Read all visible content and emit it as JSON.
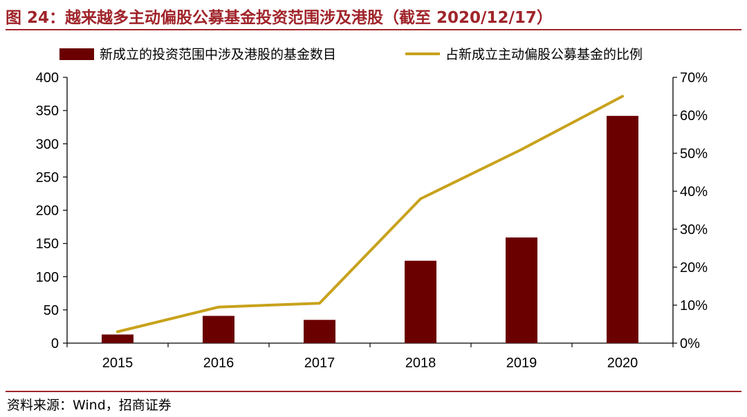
{
  "header": {
    "title": "图 24：越来越多主动偏股公募基金投资范围涉及港股（截至 2020/12/17）"
  },
  "footer": {
    "source": "资料来源：Wind，招商证券"
  },
  "colors": {
    "accent": "#a0242a",
    "bar": "#6b0000",
    "line": "#c8a21c"
  },
  "chart_data": {
    "type": "bar",
    "title": "",
    "categories": [
      "2015",
      "2016",
      "2017",
      "2018",
      "2019",
      "2020"
    ],
    "series": [
      {
        "name": "新成立的投资范围中涉及港股的基金数目",
        "type": "bar",
        "axis": "left",
        "values": [
          13,
          41,
          35,
          124,
          159,
          342
        ]
      },
      {
        "name": "占新成立主动偏股公募基金的比例",
        "type": "line",
        "axis": "right",
        "values": [
          3,
          9.5,
          10.5,
          38,
          51,
          65
        ]
      }
    ],
    "y_left": {
      "lim": [
        0,
        400
      ],
      "ticks": [
        "0",
        "50",
        "100",
        "150",
        "200",
        "250",
        "300",
        "350",
        "400"
      ]
    },
    "y_right": {
      "lim": [
        0,
        70
      ],
      "ticks": [
        "0%",
        "10%",
        "20%",
        "30%",
        "40%",
        "50%",
        "60%",
        "70%"
      ]
    },
    "xlabel": "",
    "ylabel": "",
    "grid": false,
    "legend": "top"
  }
}
